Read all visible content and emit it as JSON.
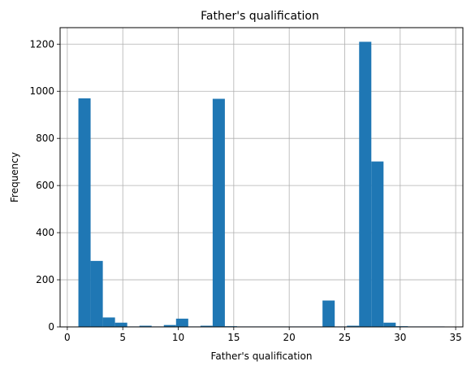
{
  "chart_data": {
    "type": "bar",
    "title": "Father's qualification",
    "xlabel": "Father's qualification",
    "ylabel": "Frequency",
    "xlim": [
      -0.65,
      35.65
    ],
    "ylim": [
      0,
      1270
    ],
    "xticks": [
      0,
      5,
      10,
      15,
      20,
      25,
      30,
      35
    ],
    "yticks": [
      0,
      200,
      400,
      600,
      800,
      1000,
      1200
    ],
    "grid": true,
    "bin_edges": [
      1.0,
      2.1,
      3.2,
      4.3,
      5.4,
      6.5,
      7.6,
      8.7,
      9.8,
      10.9,
      12.0,
      13.1,
      14.2,
      15.3,
      16.4,
      17.5,
      18.6,
      19.7,
      20.8,
      21.9,
      23.0,
      24.1,
      25.2,
      26.3,
      27.4,
      28.5,
      29.6,
      30.7,
      31.8,
      32.9,
      34.0
    ],
    "values": [
      970,
      280,
      40,
      18,
      2,
      5,
      2,
      8,
      35,
      2,
      5,
      968,
      3,
      2,
      2,
      2,
      2,
      2,
      2,
      2,
      112,
      2,
      5,
      1210,
      702,
      18,
      3,
      2,
      2,
      2
    ],
    "bar_color": "#1f77b4"
  }
}
